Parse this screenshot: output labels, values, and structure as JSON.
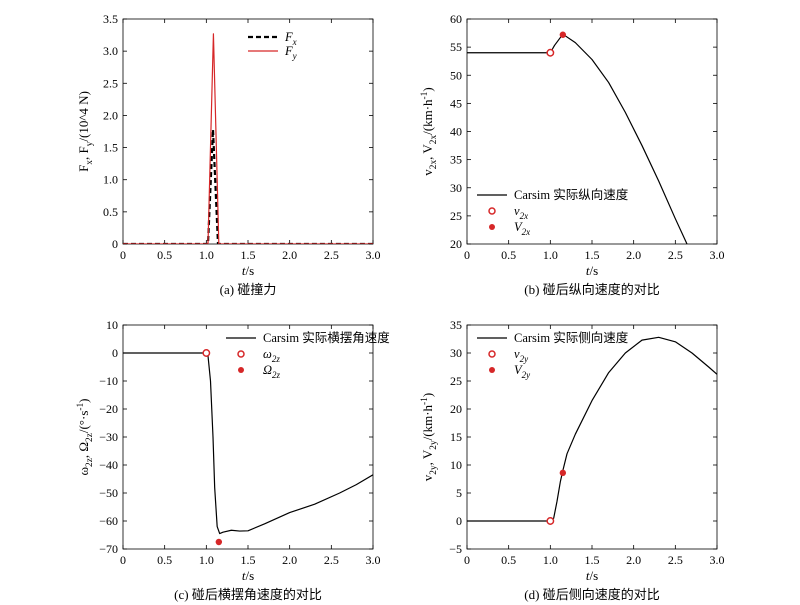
{
  "colors": {
    "axis": "#000000",
    "red": "#d62728",
    "black": "#000000"
  },
  "chart_data": [
    {
      "id": "a",
      "type": "line",
      "caption": "(a) 碰撞力",
      "xlabel": "t/s",
      "ylabel": "F_{x}, F_{y}/(10^4 N)",
      "xlim": [
        0,
        3.0
      ],
      "ylim": [
        0,
        3.5
      ],
      "xticks": [
        0,
        0.5,
        1.0,
        1.5,
        2.0,
        2.5,
        3.0
      ],
      "xtick_labels": [
        "0",
        "0.5",
        "1.0",
        "1.5",
        "2.0",
        "2.5",
        "3.0"
      ],
      "yticks": [
        0,
        0.5,
        1.0,
        1.5,
        2.0,
        2.5,
        3.0,
        3.5
      ],
      "ytick_labels": [
        "0",
        "0.5",
        "1.0",
        "1.5",
        "2.0",
        "2.5",
        "3.0",
        "3.5"
      ],
      "legend_position": "top-right",
      "series": [
        {
          "name": "F_x",
          "color": "#000000",
          "dash": true,
          "x": [
            0,
            1.02,
            1.08,
            1.14,
            3.0
          ],
          "y": [
            0,
            0,
            1.78,
            0,
            0
          ]
        },
        {
          "name": "F_y",
          "color": "#d62728",
          "dash": false,
          "x": [
            0,
            1.02,
            1.085,
            1.15,
            3.0
          ],
          "y": [
            0,
            0,
            3.27,
            0,
            0
          ]
        }
      ],
      "markers": []
    },
    {
      "id": "b",
      "type": "line",
      "caption": "(b) 碰后纵向速度的对比",
      "xlabel": "t/s",
      "ylabel": "v_{2x}, V_{2x}/(km·h^{-1})",
      "xlim": [
        0,
        3.0
      ],
      "ylim": [
        20,
        60
      ],
      "xticks": [
        0,
        0.5,
        1.0,
        1.5,
        2.0,
        2.5,
        3.0
      ],
      "xtick_labels": [
        "0",
        "0.5",
        "1.0",
        "1.5",
        "2.0",
        "2.5",
        "3.0"
      ],
      "yticks": [
        20,
        25,
        30,
        35,
        40,
        45,
        50,
        55,
        60
      ],
      "ytick_labels": [
        "20",
        "25",
        "30",
        "35",
        "40",
        "45",
        "50",
        "55",
        "60"
      ],
      "legend_position": "bottom-left",
      "series": [
        {
          "name": "Carsim 实际纵向速度",
          "color": "#000000",
          "dash": false,
          "x": [
            0,
            1.0,
            1.05,
            1.1,
            1.15,
            1.3,
            1.5,
            1.7,
            1.9,
            2.1,
            2.3,
            2.5,
            2.64
          ],
          "y": [
            54,
            54,
            55.3,
            56.3,
            57.3,
            55.8,
            52.8,
            48.7,
            43.4,
            37.5,
            31.2,
            24.5,
            20
          ]
        }
      ],
      "markers": [
        {
          "name": "v_{2x}",
          "style": "open",
          "x": 1.0,
          "y": 54
        },
        {
          "name": "V_{2x}",
          "style": "filled",
          "x": 1.15,
          "y": 57.2
        }
      ]
    },
    {
      "id": "c",
      "type": "line",
      "caption": "(c) 碰后横摆角速度的对比",
      "xlabel": "t/s",
      "ylabel": "ω_{2z}, Ω_{2z}/(°·s^{-1})",
      "xlim": [
        0,
        3.0
      ],
      "ylim": [
        -70,
        10
      ],
      "xticks": [
        0,
        0.5,
        1.0,
        1.5,
        2.0,
        2.5,
        3.0
      ],
      "xtick_labels": [
        "0",
        "0.5",
        "1.0",
        "1.5",
        "2.0",
        "2.5",
        "3.0"
      ],
      "yticks": [
        -70,
        -60,
        -50,
        -40,
        -30,
        -20,
        -10,
        0,
        10
      ],
      "ytick_labels": [
        "−70",
        "−60",
        "−50",
        "−40",
        "−30",
        "−20",
        "−10",
        "0",
        "10"
      ],
      "legend_position": "top-right",
      "series": [
        {
          "name": "Carsim 实际横摆角速度",
          "color": "#000000",
          "dash": false,
          "x": [
            0,
            1.0,
            1.02,
            1.05,
            1.08,
            1.1,
            1.13,
            1.16,
            1.2,
            1.3,
            1.4,
            1.5,
            1.7,
            2.0,
            2.3,
            2.6,
            2.8,
            3.0
          ],
          "y": [
            0,
            0,
            -1,
            -10,
            -30,
            -48,
            -62,
            -64.5,
            -64,
            -63.3,
            -63.6,
            -63.5,
            -61,
            -57,
            -54,
            -50,
            -47,
            -43.5
          ]
        }
      ],
      "markers": [
        {
          "name": "ω_{2z}",
          "style": "open",
          "x": 1.0,
          "y": 0
        },
        {
          "name": "Ω_{2z}",
          "style": "filled",
          "x": 1.15,
          "y": -67.5
        }
      ]
    },
    {
      "id": "d",
      "type": "line",
      "caption": "(d) 碰后侧向速度的对比",
      "xlabel": "t/s",
      "ylabel": "v_{2y}, V_{2y}/(km·h^{-1})",
      "xlim": [
        0,
        3.0
      ],
      "ylim": [
        -5,
        35
      ],
      "xticks": [
        0,
        0.5,
        1.0,
        1.5,
        2.0,
        2.5,
        3.0
      ],
      "xtick_labels": [
        "0",
        "0.5",
        "1.0",
        "1.5",
        "2.0",
        "2.5",
        "3.0"
      ],
      "yticks": [
        -5,
        0,
        5,
        10,
        15,
        20,
        25,
        30,
        35
      ],
      "ytick_labels": [
        "−5",
        "0",
        "5",
        "10",
        "15",
        "20",
        "25",
        "30",
        "35"
      ],
      "legend_position": "top-left",
      "series": [
        {
          "name": "Carsim 实际侧向速度",
          "color": "#000000",
          "dash": false,
          "x": [
            0,
            1.0,
            1.04,
            1.08,
            1.12,
            1.15,
            1.2,
            1.3,
            1.5,
            1.7,
            1.9,
            2.1,
            2.3,
            2.5,
            2.7,
            2.9,
            3.0
          ],
          "y": [
            0,
            0,
            0.5,
            3.5,
            7,
            9,
            12,
            15.5,
            21.5,
            26.5,
            30,
            32.3,
            32.8,
            32,
            30,
            27.5,
            26.2
          ]
        }
      ],
      "markers": [
        {
          "name": "v_{2y}",
          "style": "open",
          "x": 1.0,
          "y": 0
        },
        {
          "name": "V_{2y}",
          "style": "filled",
          "x": 1.15,
          "y": 8.6
        }
      ]
    }
  ]
}
